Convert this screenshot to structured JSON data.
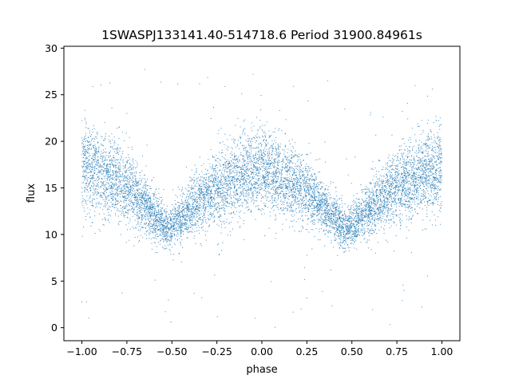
{
  "chart_data": {
    "type": "scatter",
    "title": "1SWASPJ133141.40-514718.6 Period 31900.84961s",
    "xlabel": "phase",
    "ylabel": "flux",
    "xlim": [
      -1.1,
      1.1
    ],
    "ylim": [
      -1.4,
      30.2
    ],
    "x_ticks": [
      -1.0,
      -0.75,
      -0.5,
      -0.25,
      0.0,
      0.25,
      0.5,
      0.75,
      1.0
    ],
    "x_tick_labels": [
      "−1.00",
      "−0.75",
      "−0.50",
      "−0.25",
      "0.00",
      "0.25",
      "0.50",
      "0.75",
      "1.00"
    ],
    "y_ticks": [
      0,
      5,
      10,
      15,
      20,
      25,
      30
    ],
    "y_tick_labels": [
      "0",
      "5",
      "10",
      "15",
      "20",
      "25",
      "30"
    ],
    "grid": false,
    "series": [
      {
        "color": "#1f77b4",
        "marker": "point",
        "x_range": [
          -1.0,
          1.0
        ],
        "phase_folded": true,
        "minima": [
          {
            "x": -0.53,
            "y": 10.0
          },
          {
            "x": 0.47,
            "y": 10.0
          }
        ],
        "maxima": [
          {
            "x": -1.0,
            "y": 16.0
          },
          {
            "x": 0.0,
            "y": 16.5
          },
          {
            "x": 1.0,
            "y": 16.0
          }
        ],
        "upper_envelope": [
          {
            "x": -1.0,
            "y": 23.0
          },
          {
            "x": -0.75,
            "y": 20.0
          },
          {
            "x": -0.53,
            "y": 13.0
          },
          {
            "x": -0.25,
            "y": 19.5
          },
          {
            "x": 0.0,
            "y": 23.0
          },
          {
            "x": 0.25,
            "y": 19.0
          },
          {
            "x": 0.47,
            "y": 13.0
          },
          {
            "x": 0.75,
            "y": 20.0
          },
          {
            "x": 1.0,
            "y": 23.0
          }
        ],
        "lower_envelope": [
          {
            "x": -1.0,
            "y": 11.5
          },
          {
            "x": -0.75,
            "y": 10.5
          },
          {
            "x": -0.53,
            "y": 8.0
          },
          {
            "x": -0.25,
            "y": 10.5
          },
          {
            "x": 0.0,
            "y": 11.5
          },
          {
            "x": 0.25,
            "y": 10.5
          },
          {
            "x": 0.47,
            "y": 8.0
          },
          {
            "x": 0.75,
            "y": 10.5
          },
          {
            "x": 1.0,
            "y": 11.5
          }
        ],
        "outlier_y_range": [
          0,
          28
        ]
      }
    ]
  }
}
